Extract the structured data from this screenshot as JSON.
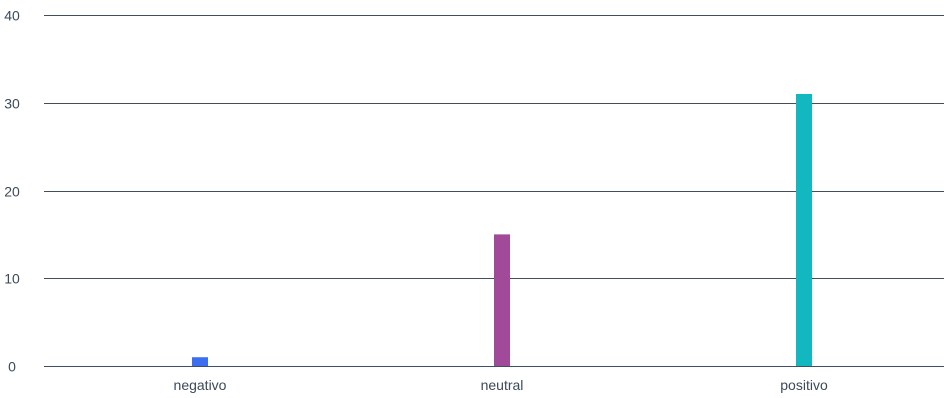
{
  "chart_data": {
    "type": "bar",
    "categories": [
      "negativo",
      "neutral",
      "positivo"
    ],
    "values": [
      1,
      15,
      31
    ],
    "colors": [
      "#3b6ff0",
      "#a04a99",
      "#12b7bf"
    ],
    "ylim": [
      0,
      40
    ],
    "yticks": [
      0,
      10,
      20,
      30,
      40
    ],
    "grid": true,
    "legend": "none",
    "title": "",
    "xlabel": "",
    "ylabel": ""
  }
}
